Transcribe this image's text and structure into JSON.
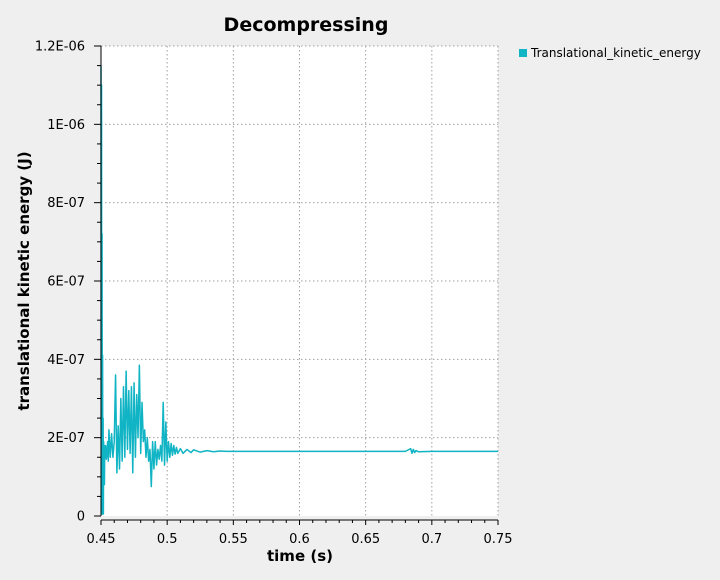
{
  "chart_data": {
    "type": "line",
    "title": "Decompressing",
    "xlabel": "time (s)",
    "ylabel": "translational kinetic energy (J)",
    "xlim": [
      0.45,
      0.75
    ],
    "ylim": [
      0,
      1.2e-06
    ],
    "x_ticks": [
      0.45,
      0.5,
      0.55,
      0.6,
      0.65,
      0.7,
      0.75
    ],
    "x_tick_labels": [
      "0.45",
      "0.5",
      "0.55",
      "0.6",
      "0.65",
      "0.7",
      "0.75"
    ],
    "y_ticks": [
      0,
      2e-07,
      4e-07,
      6e-07,
      8e-07,
      1e-06,
      1.2e-06
    ],
    "y_tick_labels": [
      "0",
      "2E-07",
      "4E-07",
      "6E-07",
      "8E-07",
      "1E-06",
      "1.2E-06"
    ],
    "grid": true,
    "legend_position": "top-right, outside plot",
    "series": [
      {
        "name": "Translational_kinetic_energy",
        "color": "#10b4c4",
        "x": [
          0.45,
          0.4502,
          0.4504,
          0.4506,
          0.4508,
          0.451,
          0.4512,
          0.4514,
          0.4516,
          0.4518,
          0.452,
          0.4522,
          0.4524,
          0.4526,
          0.4528,
          0.453,
          0.4535,
          0.454,
          0.4545,
          0.455,
          0.4555,
          0.456,
          0.457,
          0.458,
          0.459,
          0.46,
          0.461,
          0.462,
          0.463,
          0.464,
          0.465,
          0.466,
          0.467,
          0.468,
          0.469,
          0.47,
          0.471,
          0.472,
          0.473,
          0.474,
          0.475,
          0.476,
          0.477,
          0.478,
          0.479,
          0.48,
          0.481,
          0.482,
          0.483,
          0.484,
          0.485,
          0.486,
          0.487,
          0.488,
          0.489,
          0.49,
          0.491,
          0.492,
          0.493,
          0.494,
          0.495,
          0.496,
          0.497,
          0.498,
          0.499,
          0.5,
          0.501,
          0.502,
          0.503,
          0.504,
          0.505,
          0.506,
          0.507,
          0.508,
          0.51,
          0.512,
          0.515,
          0.518,
          0.52,
          0.525,
          0.53,
          0.535,
          0.54,
          0.545,
          0.55,
          0.6,
          0.65,
          0.68,
          0.684,
          0.685,
          0.686,
          0.687,
          0.688,
          0.69,
          0.7,
          0.75
        ],
        "values": [
          1.15e-06,
          5e-09,
          1.1e-06,
          5e-09,
          7.2e-07,
          5e-09,
          4.1e-07,
          5e-09,
          2.5e-07,
          5e-09,
          1.9e-07,
          1.2e-07,
          1.8e-07,
          8e-08,
          1.7e-07,
          1.5e-07,
          1.8e-07,
          1.45e-07,
          1.6e-07,
          1.9e-07,
          1.4e-07,
          2.2e-07,
          1.5e-07,
          2.1e-07,
          1.5e-07,
          1.9e-07,
          3.6e-07,
          1.1e-07,
          2.3e-07,
          1.2e-07,
          3e-07,
          1.4e-07,
          3.3e-07,
          1.5e-07,
          3.7e-07,
          1.7e-07,
          3.2e-07,
          1.6e-07,
          3.3e-07,
          1.1e-07,
          3.4e-07,
          1.5e-07,
          3.1e-07,
          2e-07,
          3.85e-07,
          1.6e-07,
          2.9e-07,
          1.9e-07,
          2.2e-07,
          1.5e-07,
          2e-07,
          1.4e-07,
          1.7e-07,
          7.5e-08,
          1.9e-07,
          1.2e-07,
          1.9e-07,
          1.3e-07,
          1.7e-07,
          1.45e-07,
          1.8e-07,
          1.4e-07,
          2.9e-07,
          1.3e-07,
          2.4e-07,
          1.4e-07,
          1.9e-07,
          1.5e-07,
          1.85e-07,
          1.55e-07,
          1.8e-07,
          1.58e-07,
          1.75e-07,
          1.6e-07,
          1.72e-07,
          1.6e-07,
          1.7e-07,
          1.62e-07,
          1.69e-07,
          1.63e-07,
          1.67e-07,
          1.64e-07,
          1.66e-07,
          1.65e-07,
          1.65e-07,
          1.65e-07,
          1.65e-07,
          1.65e-07,
          1.72e-07,
          1.6e-07,
          1.7e-07,
          1.62e-07,
          1.67e-07,
          1.64e-07,
          1.65e-07,
          1.65e-07
        ]
      }
    ]
  }
}
